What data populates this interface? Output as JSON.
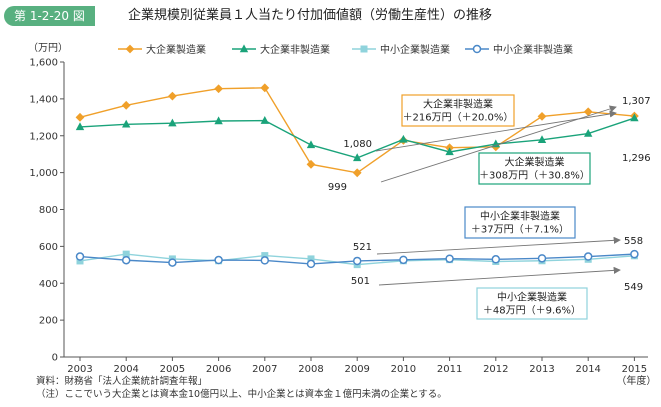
{
  "figure": {
    "number": "第 1-2-20 図",
    "title": "企業規模別従業員１人当たり付加価値額（労働生産性）の推移"
  },
  "notes": {
    "source": "資料：財務省「法人企業統計調査年報」",
    "note": "（注）ここでいう大企業とは資本金10億円以上、中小企業とは資本金１億円未満の企業とする。"
  },
  "chart_data": {
    "type": "line",
    "title": "企業規模別従業員１人当たり付加価値額（労働生産性）の推移",
    "ylabel": "（万円）",
    "xlabel": "（年度）",
    "ylim": [
      0,
      1600
    ],
    "yticks": [
      "0",
      "200",
      "400",
      "600",
      "800",
      "1,000",
      "1,200",
      "1,400",
      "1,600"
    ],
    "ytick_values": [
      0,
      200,
      400,
      600,
      800,
      1000,
      1200,
      1400,
      1600
    ],
    "categories": [
      "2003",
      "2004",
      "2005",
      "2006",
      "2007",
      "2008",
      "2009",
      "2010",
      "2011",
      "2012",
      "2013",
      "2014",
      "2015"
    ],
    "grid": false,
    "legend_position": "top",
    "series": [
      {
        "name": "大企業製造業",
        "color": "#f0a02a",
        "marker": "diamond",
        "values": [
          1300,
          1365,
          1415,
          1455,
          1460,
          1045,
          999,
          1175,
          1135,
          1140,
          1305,
          1330,
          1307
        ]
      },
      {
        "name": "大企業非製造業",
        "color": "#1aa37a",
        "marker": "triangle",
        "values": [
          1248,
          1262,
          1268,
          1280,
          1282,
          1150,
          1080,
          1180,
          1112,
          1155,
          1178,
          1212,
          1296
        ]
      },
      {
        "name": "中小企業製造業",
        "color": "#8fd3dc",
        "marker": "square",
        "values": [
          521,
          558,
          532,
          522,
          550,
          532,
          501,
          522,
          528,
          518,
          522,
          530,
          549
        ]
      },
      {
        "name": "中小企業非製造業",
        "color": "#4a88c8",
        "marker": "circle",
        "values": [
          545,
          525,
          512,
          526,
          524,
          505,
          521,
          527,
          533,
          530,
          535,
          545,
          558
        ]
      }
    ],
    "point_labels": [
      {
        "text": "1,080",
        "series": 1,
        "index": 6
      },
      {
        "text": "999",
        "series": 0,
        "index": 6
      },
      {
        "text": "1,307",
        "series": 0,
        "index": 12
      },
      {
        "text": "1,296",
        "series": 1,
        "index": 12
      },
      {
        "text": "521",
        "series": 3,
        "index": 6
      },
      {
        "text": "501",
        "series": 2,
        "index": 6
      },
      {
        "text": "558",
        "series": 3,
        "index": 12
      },
      {
        "text": "549",
        "series": 2,
        "index": 12
      }
    ],
    "annotations": [
      {
        "name": "large-nonmfg",
        "line1": "大企業非製造業",
        "line2": "＋216万円（＋20.0%）",
        "border": "#f0a02a"
      },
      {
        "name": "large-mfg",
        "line1": "大企業製造業",
        "line2": "＋308万円（＋30.8%）",
        "border": "#1aa37a"
      },
      {
        "name": "sme-nonmfg",
        "line1": "中小企業非製造業",
        "line2": "＋37万円（＋7.1%）",
        "border": "#4a88c8"
      },
      {
        "name": "sme-mfg",
        "line1": "中小企業製造業",
        "line2": "＋48万円（＋9.6%）",
        "border": "#8fd3dc"
      }
    ]
  }
}
